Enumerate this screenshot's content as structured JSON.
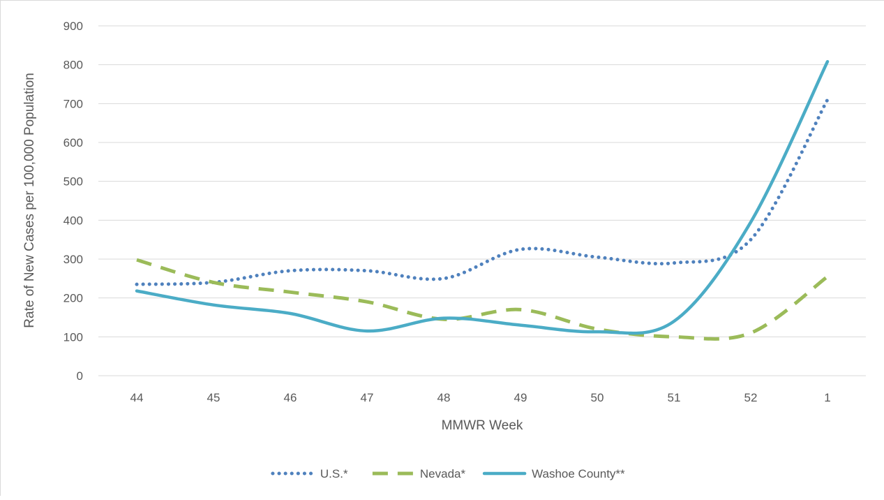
{
  "chart_data": {
    "type": "line",
    "title": "",
    "xlabel": "MMWR Week",
    "ylabel": "Rate of New Cases per 100,000 Population",
    "categories": [
      "44",
      "45",
      "46",
      "47",
      "48",
      "49",
      "50",
      "51",
      "52",
      "1"
    ],
    "ylim": [
      0,
      900
    ],
    "yticks": [
      0,
      100,
      200,
      300,
      400,
      500,
      600,
      700,
      800,
      900
    ],
    "grid": true,
    "legend": "bottom",
    "series": [
      {
        "name": "U.S.*",
        "values": [
          235,
          240,
          270,
          270,
          250,
          325,
          305,
          290,
          350,
          710
        ],
        "color": "#4f81bd",
        "dash": "dotted"
      },
      {
        "name": "Nevada*",
        "values": [
          298,
          240,
          215,
          190,
          145,
          170,
          120,
          100,
          110,
          255
        ],
        "color": "#9bbb59",
        "dash": "dashed"
      },
      {
        "name": "Washoe County**",
        "values": [
          218,
          182,
          160,
          115,
          148,
          130,
          113,
          140,
          395,
          808
        ],
        "color": "#4bacc6",
        "dash": "solid"
      }
    ]
  }
}
